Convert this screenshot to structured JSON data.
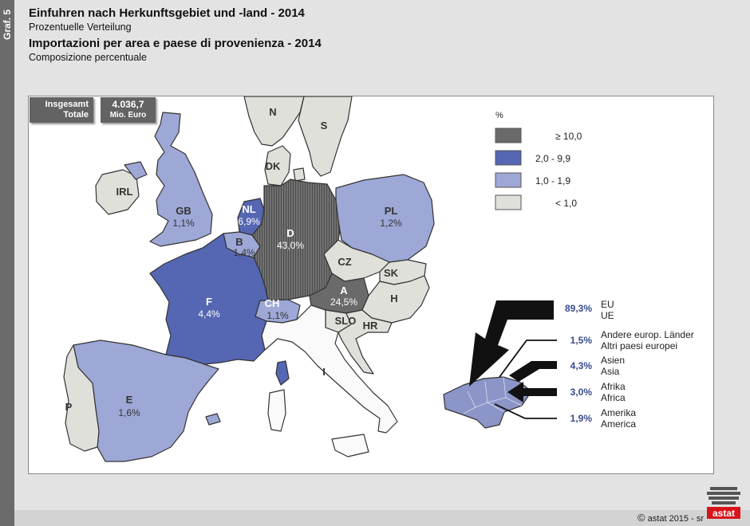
{
  "side_tag": "Graf. 5",
  "title_de": "Einfuhren nach Herkunftsgebiet und -land - 2014",
  "subtitle_de": "Prozentuelle Verteilung",
  "title_it": "Importazioni per area e paese di provenienza - 2014",
  "subtitle_it": "Composizione percentuale",
  "total": {
    "label_de": "Insgesamt",
    "label_it": "Totale",
    "value": "4.036,7",
    "unit": "Mio. Euro"
  },
  "legend": {
    "title": "%",
    "items": [
      {
        "label": "≥  10,0",
        "color": "#6a6a6a"
      },
      {
        "label": "2,0  -   9,9",
        "color": "#5566b3"
      },
      {
        "label": "1,0  -   1,9",
        "color": "#9ea8d6"
      },
      {
        "label": "<  1,0",
        "color": "#dfe0da"
      }
    ]
  },
  "countries": [
    {
      "code": "N",
      "value": ""
    },
    {
      "code": "S",
      "value": ""
    },
    {
      "code": "DK",
      "value": ""
    },
    {
      "code": "IRL",
      "value": ""
    },
    {
      "code": "GB",
      "value": "1,1%"
    },
    {
      "code": "NL",
      "value": "6,9%"
    },
    {
      "code": "B",
      "value": "1,4%"
    },
    {
      "code": "D",
      "value": "43,0%"
    },
    {
      "code": "PL",
      "value": "1,2%"
    },
    {
      "code": "CZ",
      "value": ""
    },
    {
      "code": "SK",
      "value": ""
    },
    {
      "code": "A",
      "value": "24,5%"
    },
    {
      "code": "H",
      "value": ""
    },
    {
      "code": "F",
      "value": "4,4%"
    },
    {
      "code": "CH",
      "value": "1,1%"
    },
    {
      "code": "SLO",
      "value": ""
    },
    {
      "code": "HR",
      "value": ""
    },
    {
      "code": "I",
      "value": ""
    },
    {
      "code": "E",
      "value": "1,6%"
    },
    {
      "code": "P",
      "value": ""
    }
  ],
  "flows": [
    {
      "value": "89,3%",
      "label_de": "EU",
      "label_it": "UE"
    },
    {
      "value": "1,5%",
      "label_de": "Andere europ. Länder",
      "label_it": "Altri paesi europei"
    },
    {
      "value": "4,3%",
      "label_de": "Asien",
      "label_it": "Asia"
    },
    {
      "value": "3,0%",
      "label_de": "Afrika",
      "label_it": "Africa"
    },
    {
      "value": "1,9%",
      "label_de": "Amerika",
      "label_it": "America"
    }
  ],
  "credit": "astat 2015 - sr",
  "copyright_symbol": "©",
  "logo_text": "astat"
}
